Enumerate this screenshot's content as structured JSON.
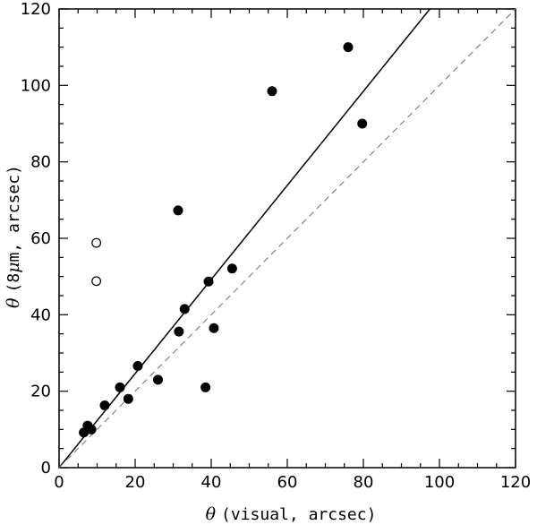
{
  "chart_data": {
    "type": "scatter",
    "title": "",
    "xlabel": {
      "symbol": "θ",
      "text": "(visual, arcsec)"
    },
    "ylabel": {
      "symbol": "θ",
      "text_before": "(8",
      "mu": "μ",
      "text_after": "m, arcsec)"
    },
    "xlim": [
      0,
      120
    ],
    "ylim": [
      0,
      120
    ],
    "xticks": [
      0,
      20,
      40,
      60,
      80,
      100,
      120
    ],
    "yticks": [
      0,
      20,
      40,
      60,
      80,
      100,
      120
    ],
    "x_tick_labels": [
      "0",
      "20",
      "40",
      "60",
      "80",
      "100",
      "120"
    ],
    "y_tick_labels": [
      "0",
      "20",
      "40",
      "60",
      "80",
      "100",
      "120"
    ],
    "minor_tick_step": 5,
    "grid": false,
    "series": [
      {
        "name": "filled",
        "marker": "filled-circle",
        "points": [
          {
            "x": 6.5,
            "y": 9.2
          },
          {
            "x": 7.5,
            "y": 11.0
          },
          {
            "x": 8.5,
            "y": 10.0
          },
          {
            "x": 12.0,
            "y": 16.3
          },
          {
            "x": 16.0,
            "y": 21.0
          },
          {
            "x": 18.2,
            "y": 18.0
          },
          {
            "x": 20.7,
            "y": 26.6
          },
          {
            "x": 26.0,
            "y": 23.0
          },
          {
            "x": 31.5,
            "y": 35.6
          },
          {
            "x": 31.3,
            "y": 67.3
          },
          {
            "x": 33.0,
            "y": 41.5
          },
          {
            "x": 38.5,
            "y": 21.0
          },
          {
            "x": 39.3,
            "y": 48.7
          },
          {
            "x": 40.7,
            "y": 36.5
          },
          {
            "x": 45.5,
            "y": 52.1
          },
          {
            "x": 56.0,
            "y": 98.5
          },
          {
            "x": 76.0,
            "y": 110.0
          },
          {
            "x": 79.7,
            "y": 90.0
          }
        ]
      },
      {
        "name": "open",
        "marker": "open-circle",
        "points": [
          {
            "x": 9.8,
            "y": 58.8
          },
          {
            "x": 9.8,
            "y": 48.8
          }
        ]
      }
    ],
    "lines": [
      {
        "name": "fit",
        "style": "solid",
        "from": [
          0,
          0
        ],
        "to": [
          97.5,
          120
        ]
      },
      {
        "name": "one-to-one",
        "style": "dashed",
        "from": [
          0,
          0
        ],
        "to": [
          120,
          120
        ]
      }
    ]
  }
}
